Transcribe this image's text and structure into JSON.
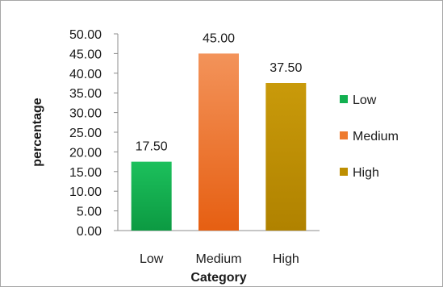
{
  "chart_data": {
    "type": "bar",
    "categories": [
      "Low",
      "Medium",
      "High"
    ],
    "values": [
      17.5,
      45.0,
      37.5
    ],
    "data_labels": [
      "17.50",
      "45.00",
      "37.50"
    ],
    "colors": [
      "#12b050",
      "#ee7a2e",
      "#bd8e00"
    ],
    "xlabel": "Category",
    "ylabel": "percentage",
    "ylim": [
      0,
      50
    ],
    "ytick_step": 5,
    "ytick_labels": [
      "0.00",
      "5.00",
      "10.00",
      "15.00",
      "20.00",
      "25.00",
      "30.00",
      "35.00",
      "40.00",
      "45.00",
      "50.00"
    ],
    "grid": false,
    "legend": {
      "position": "right",
      "entries": [
        "Low",
        "Medium",
        "High"
      ]
    }
  }
}
